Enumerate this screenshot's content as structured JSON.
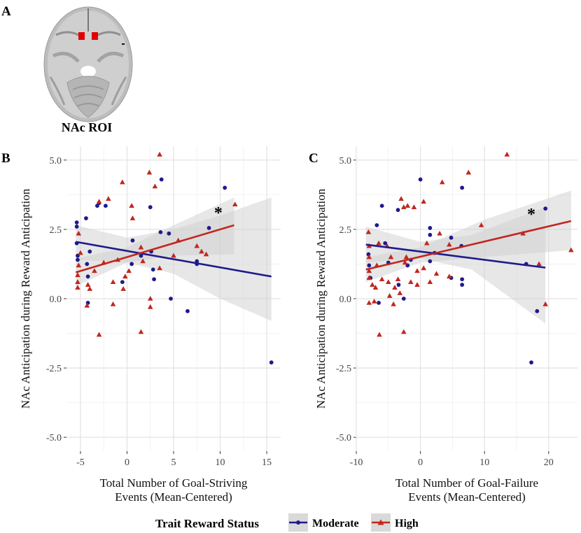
{
  "panel_a": {
    "label": "A",
    "caption": "NAc ROI"
  },
  "legend": {
    "title": "Trait Reward Status",
    "items": [
      {
        "name": "Moderate",
        "color": "#1f1a8c",
        "marker": "circle"
      },
      {
        "name": "High",
        "color": "#c0271f",
        "marker": "triangle"
      }
    ]
  },
  "chart_data": [
    {
      "type": "scatter",
      "panel": "B",
      "xlabel": "Total Number of Goal-Striving Events (Mean-Centered)",
      "xlabel_lines": [
        "Total Number of Goal-Striving",
        "Events (Mean-Centered)"
      ],
      "ylabel": "NAc Anticipation during Reward Anticipation",
      "xlim": [
        -6.5,
        16.5
      ],
      "ylim": [
        -5.5,
        5.5
      ],
      "xticks": [
        -5,
        0,
        5,
        10,
        15
      ],
      "xtick_labels": [
        "-5",
        "0",
        "5",
        "10",
        "15"
      ],
      "yticks": [
        -5,
        -2.5,
        0,
        2.5,
        5
      ],
      "ytick_labels": [
        "-5.0",
        "-2.5",
        "0.0",
        "2.5",
        "5.0"
      ],
      "annotation": "*",
      "annotation_pos": [
        9.8,
        3.2
      ],
      "series": [
        {
          "name": "Moderate",
          "fit": {
            "x": [
              -5.5,
              15.5
            ],
            "y": [
              2.05,
              0.8
            ]
          },
          "ci": {
            "x": [
              -5.5,
              0,
              5,
              10,
              15.5
            ],
            "upper": [
              2.65,
              2.2,
              2.5,
              3.0,
              3.65
            ],
            "lower": [
              1.4,
              1.3,
              0.9,
              0.0,
              -0.8
            ]
          },
          "points": [
            [
              -5.4,
              2.75
            ],
            [
              -5.4,
              2.6
            ],
            [
              -5.4,
              2.0
            ],
            [
              -5.3,
              1.4
            ],
            [
              -5.3,
              1.55
            ],
            [
              -4.4,
              2.9
            ],
            [
              -4.3,
              1.25
            ],
            [
              -4.2,
              0.8
            ],
            [
              -4.2,
              -0.15
            ],
            [
              -4.0,
              1.7
            ],
            [
              -3.2,
              3.35
            ],
            [
              -3.0,
              3.45
            ],
            [
              -2.3,
              3.35
            ],
            [
              -0.5,
              0.6
            ],
            [
              0.5,
              1.25
            ],
            [
              0.6,
              2.1
            ],
            [
              1.5,
              1.55
            ],
            [
              2.5,
              3.3
            ],
            [
              2.6,
              1.7
            ],
            [
              2.8,
              1.05
            ],
            [
              2.9,
              0.7
            ],
            [
              3.6,
              2.4
            ],
            [
              3.7,
              4.3
            ],
            [
              4.5,
              2.35
            ],
            [
              4.7,
              0.0
            ],
            [
              6.5,
              -0.45
            ],
            [
              7.5,
              1.35
            ],
            [
              7.5,
              1.25
            ],
            [
              8.8,
              2.55
            ],
            [
              10.5,
              4.0
            ],
            [
              15.5,
              -2.3
            ]
          ]
        },
        {
          "name": "High",
          "fit": {
            "x": [
              -5.5,
              11.5
            ],
            "y": [
              0.95,
              2.65
            ]
          },
          "ci": {
            "x": [
              -5.5,
              0,
              5,
              11.5
            ],
            "upper": [
              1.45,
              1.85,
              2.65,
              3.65
            ],
            "lower": [
              0.45,
              1.3,
              1.55,
              1.6
            ]
          },
          "points": [
            [
              -5.3,
              0.4
            ],
            [
              -5.3,
              0.6
            ],
            [
              -5.3,
              0.85
            ],
            [
              -5.2,
              1.2
            ],
            [
              -5.2,
              2.35
            ],
            [
              -5.0,
              1.65
            ],
            [
              -4.3,
              -0.25
            ],
            [
              -4.2,
              0.5
            ],
            [
              -4.0,
              0.35
            ],
            [
              -3.5,
              1.0
            ],
            [
              -3.0,
              3.5
            ],
            [
              -3.0,
              -1.3
            ],
            [
              -2.5,
              1.3
            ],
            [
              -2.0,
              3.6
            ],
            [
              -1.5,
              0.6
            ],
            [
              -1.5,
              -0.2
            ],
            [
              -1.0,
              1.4
            ],
            [
              -0.5,
              4.2
            ],
            [
              -0.4,
              0.35
            ],
            [
              -0.2,
              0.8
            ],
            [
              0.2,
              1.0
            ],
            [
              0.5,
              3.35
            ],
            [
              0.6,
              2.9
            ],
            [
              1.5,
              1.85
            ],
            [
              1.5,
              -1.2
            ],
            [
              1.7,
              1.35
            ],
            [
              2.4,
              4.55
            ],
            [
              2.5,
              0.0
            ],
            [
              2.5,
              -0.3
            ],
            [
              3.0,
              4.05
            ],
            [
              3.5,
              5.2
            ],
            [
              3.5,
              1.1
            ],
            [
              5.0,
              1.55
            ],
            [
              5.5,
              2.1
            ],
            [
              7.5,
              1.9
            ],
            [
              8.0,
              1.7
            ],
            [
              8.5,
              1.6
            ],
            [
              11.6,
              3.4
            ]
          ]
        }
      ]
    },
    {
      "type": "scatter",
      "panel": "C",
      "xlabel": "Total Number of Goal-Failure Events (Mean-Centered)",
      "xlabel_lines": [
        "Total Number of Goal-Failure",
        "Events (Mean-Centered)"
      ],
      "ylabel": "NAc Anticipation during Reward Anticipation",
      "xlim": [
        -10,
        24.5
      ],
      "ylim": [
        -5.5,
        5.5
      ],
      "xticks": [
        -10,
        0,
        10,
        20
      ],
      "xtick_labels": [
        "-10",
        "0",
        "10",
        "20"
      ],
      "yticks": [
        -5,
        -2.5,
        0,
        2.5,
        5
      ],
      "ytick_labels": [
        "-5.0",
        "-2.5",
        "0.0",
        "2.5",
        "5.0"
      ],
      "annotation": "*",
      "annotation_pos": [
        17.3,
        3.15
      ],
      "series": [
        {
          "name": "Moderate",
          "fit": {
            "x": [
              -8.5,
              19.5
            ],
            "y": [
              1.95,
              1.12
            ]
          },
          "ci": {
            "x": [
              -8.5,
              0,
              8,
              19.5
            ],
            "upper": [
              2.6,
              2.05,
              2.3,
              3.3
            ],
            "lower": [
              1.3,
              1.45,
              1.05,
              -0.9
            ]
          },
          "points": [
            [
              -8.1,
              1.6
            ],
            [
              -8.0,
              1.2
            ],
            [
              -7.8,
              0.75
            ],
            [
              -6.8,
              2.65
            ],
            [
              -6.5,
              -0.15
            ],
            [
              -6.0,
              3.35
            ],
            [
              -5.5,
              2.0
            ],
            [
              -5.0,
              1.3
            ],
            [
              -3.5,
              3.2
            ],
            [
              -3.4,
              0.5
            ],
            [
              -2.6,
              0.0
            ],
            [
              -2.0,
              1.2
            ],
            [
              -1.5,
              1.4
            ],
            [
              0.0,
              4.3
            ],
            [
              1.5,
              2.55
            ],
            [
              1.5,
              2.3
            ],
            [
              1.5,
              1.35
            ],
            [
              2.2,
              1.65
            ],
            [
              4.8,
              2.2
            ],
            [
              4.8,
              0.75
            ],
            [
              6.4,
              1.9
            ],
            [
              6.5,
              0.5
            ],
            [
              6.5,
              0.7
            ],
            [
              6.5,
              4.0
            ],
            [
              16.5,
              1.25
            ],
            [
              17.3,
              -2.3
            ],
            [
              18.2,
              -0.45
            ],
            [
              19.5,
              3.25
            ]
          ]
        },
        {
          "name": "High",
          "fit": {
            "x": [
              -8.5,
              23.5
            ],
            "y": [
              1.05,
              2.8
            ]
          },
          "ci": {
            "x": [
              -8.5,
              0,
              10,
              23.5
            ],
            "upper": [
              1.5,
              1.85,
              2.85,
              3.9
            ],
            "lower": [
              0.6,
              1.3,
              1.5,
              1.75
            ]
          },
          "points": [
            [
              -8.1,
              2.4
            ],
            [
              -8.0,
              1.9
            ],
            [
              -8.0,
              1.5
            ],
            [
              -8.0,
              1.0
            ],
            [
              -8.0,
              0.75
            ],
            [
              -8.0,
              -0.15
            ],
            [
              -7.5,
              0.5
            ],
            [
              -7.2,
              -0.1
            ],
            [
              -7.0,
              0.4
            ],
            [
              -6.8,
              1.2
            ],
            [
              -6.5,
              2.0
            ],
            [
              -6.4,
              -1.3
            ],
            [
              -6.0,
              0.7
            ],
            [
              -5.2,
              1.9
            ],
            [
              -5.0,
              0.6
            ],
            [
              -4.8,
              0.1
            ],
            [
              -4.6,
              1.5
            ],
            [
              -4.2,
              -0.2
            ],
            [
              -4.0,
              0.4
            ],
            [
              -3.5,
              0.7
            ],
            [
              -3.2,
              0.2
            ],
            [
              -3.0,
              3.6
            ],
            [
              -2.6,
              3.3
            ],
            [
              -2.6,
              -1.2
            ],
            [
              -2.4,
              1.3
            ],
            [
              -2.2,
              1.5
            ],
            [
              -2.0,
              3.35
            ],
            [
              -1.5,
              0.6
            ],
            [
              -1.0,
              3.3
            ],
            [
              -0.5,
              1.0
            ],
            [
              -0.5,
              0.5
            ],
            [
              0.5,
              3.5
            ],
            [
              0.5,
              1.1
            ],
            [
              1.0,
              2.0
            ],
            [
              1.5,
              0.6
            ],
            [
              2.5,
              0.9
            ],
            [
              3.0,
              2.35
            ],
            [
              3.4,
              4.2
            ],
            [
              4.5,
              0.8
            ],
            [
              4.5,
              1.95
            ],
            [
              7.5,
              4.55
            ],
            [
              9.5,
              2.65
            ],
            [
              13.5,
              5.2
            ],
            [
              16.0,
              2.35
            ],
            [
              18.5,
              1.25
            ],
            [
              19.5,
              -0.2
            ],
            [
              23.5,
              1.75
            ]
          ]
        }
      ]
    }
  ]
}
